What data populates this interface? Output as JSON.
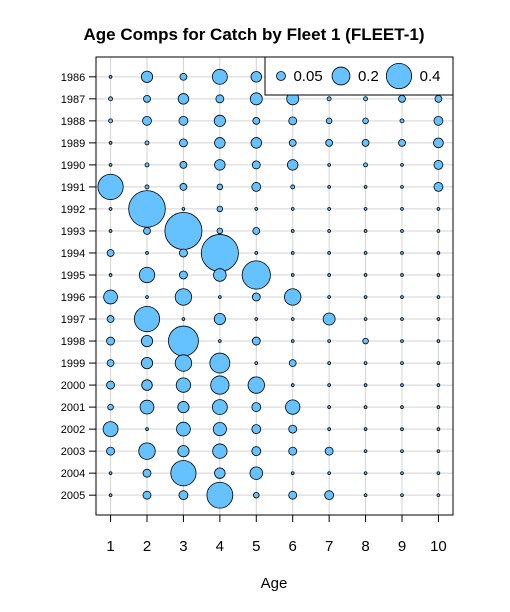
{
  "chart_data": {
    "type": "bubble",
    "title": "Age Comps for Catch by Fleet 1 (FLEET-1)",
    "xlabel": "Age",
    "ylabel": "",
    "x_ticks": [
      1,
      2,
      3,
      4,
      5,
      6,
      7,
      8,
      9,
      10
    ],
    "years": [
      1986,
      1987,
      1988,
      1989,
      1990,
      1991,
      1992,
      1993,
      1994,
      1995,
      1996,
      1997,
      1998,
      1999,
      2000,
      2001,
      2002,
      2003,
      2004,
      2005
    ],
    "xlim": [
      0.6,
      10.4
    ],
    "ylim": [
      1985.1,
      2005.9
    ],
    "legend": {
      "position": "top-right",
      "entries": [
        {
          "label": "0.05",
          "value": 0.05
        },
        {
          "label": "0.2",
          "value": 0.2
        },
        {
          "label": "0.4",
          "value": 0.4
        }
      ]
    },
    "bubble_color": "#66c2ff",
    "grid": true,
    "values": [
      [
        0.005,
        0.08,
        0.03,
        0.14,
        0.07,
        0.03,
        0.01,
        0.03,
        0.01,
        0.03
      ],
      [
        0.01,
        0.03,
        0.07,
        0.04,
        0.09,
        0.09,
        0.01,
        0.01,
        0.03,
        0.03
      ],
      [
        0.01,
        0.05,
        0.05,
        0.08,
        0.03,
        0.04,
        0.02,
        0.02,
        0.01,
        0.05
      ],
      [
        0.005,
        0.01,
        0.04,
        0.07,
        0.07,
        0.03,
        0.03,
        0.03,
        0.03,
        0.06
      ],
      [
        0.005,
        0.01,
        0.03,
        0.07,
        0.04,
        0.07,
        0.005,
        0.01,
        0.005,
        0.05
      ],
      [
        0.4,
        0.01,
        0.03,
        0.02,
        0.05,
        0.01,
        0.005,
        0.005,
        0.005,
        0.05
      ],
      [
        0.005,
        0.84,
        0.005,
        0.02,
        0.005,
        0.005,
        0.005,
        0.005,
        0.005,
        0.005
      ],
      [
        0.005,
        0.03,
        0.86,
        0.02,
        0.03,
        0.005,
        0.005,
        0.005,
        0.005,
        0.005
      ],
      [
        0.03,
        0.005,
        0.04,
        0.86,
        0.005,
        0.005,
        0.005,
        0.005,
        0.005,
        0.005
      ],
      [
        0.005,
        0.15,
        0.04,
        0.1,
        0.5,
        0.005,
        0.005,
        0.005,
        0.005,
        0.005
      ],
      [
        0.12,
        0.005,
        0.17,
        0.005,
        0.04,
        0.17,
        0.005,
        0.005,
        0.005,
        0.005
      ],
      [
        0.03,
        0.4,
        0.005,
        0.08,
        0.005,
        0.005,
        0.09,
        0.005,
        0.005,
        0.005
      ],
      [
        0.04,
        0.08,
        0.56,
        0.005,
        0.04,
        0.005,
        0.005,
        0.02,
        0.005,
        0.005
      ],
      [
        0.03,
        0.08,
        0.17,
        0.25,
        0.005,
        0.03,
        0.005,
        0.005,
        0.005,
        0.005
      ],
      [
        0.04,
        0.07,
        0.13,
        0.21,
        0.17,
        0.005,
        0.005,
        0.005,
        0.005,
        0.005
      ],
      [
        0.02,
        0.12,
        0.08,
        0.14,
        0.05,
        0.13,
        0.005,
        0.005,
        0.005,
        0.005
      ],
      [
        0.14,
        0.005,
        0.12,
        0.11,
        0.05,
        0.04,
        0.005,
        0.005,
        0.005,
        0.005
      ],
      [
        0.04,
        0.17,
        0.08,
        0.13,
        0.05,
        0.04,
        0.04,
        0.005,
        0.005,
        0.005
      ],
      [
        0.005,
        0.04,
        0.4,
        0.07,
        0.1,
        0.005,
        0.005,
        0.005,
        0.005,
        0.005
      ],
      [
        0.005,
        0.04,
        0.05,
        0.42,
        0.02,
        0.04,
        0.05,
        0.005,
        0.005,
        0.005
      ]
    ]
  }
}
